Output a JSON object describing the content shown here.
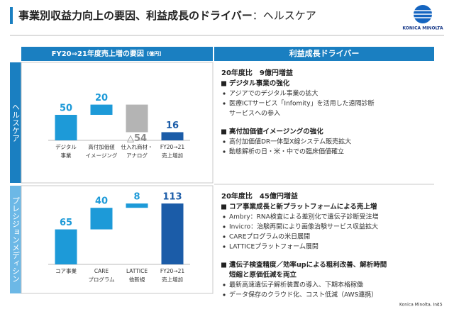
{
  "header": {
    "title": "事業別収益力向上の要因、利益成長のドライバー",
    "subtitle": "：ヘルスケア",
    "logo_text": "KONICA MINOLTA"
  },
  "table": {
    "left_header": "FY20⇒21年度売上増の要因",
    "left_header_unit": "[億円]",
    "right_header": "利益成長ドライバー",
    "rows": [
      {
        "label": "ヘルスケア",
        "heading": "20年度比　9億円増益",
        "sections": [
          {
            "title": [
              "デジタル事業の強化"
            ],
            "bullets": [
              [
                "アジアでのデジタル事業の拡大"
              ],
              [
                "医療ICTサービス「Infomity」を活用した遠隔診断",
                "サービスへの参入"
              ]
            ]
          },
          {
            "title": [
              "高付加価値イメージングの強化"
            ],
            "bullets": [
              [
                "高付加価値DR一体型X線システム販売拡大"
              ],
              [
                "動態解析の日・米・中での臨床価値確立"
              ]
            ]
          }
        ]
      },
      {
        "label": "プレシジョンメディシン",
        "heading": "20年度比　45億円増益",
        "sections": [
          {
            "title": [
              "コア事業成長と新プラットフォームによる売上増"
            ],
            "bullets": [
              [
                "Ambry：RNA検査による差別化で遺伝子診断受注増"
              ],
              [
                "Invicro：治験再開により画像治験サービス収益拡大"
              ],
              [
                "CAREプログラムの米日展開"
              ],
              [
                "LATTICEプラットフォーム展開"
              ]
            ]
          },
          {
            "title": [
              "遺伝子検査精度／効率upによる粗利改善、解析時間",
              "短縮と原価低減を両立"
            ],
            "bullets": [
              [
                "最新高速遺伝子解析装置の導入、下期本格稼働"
              ],
              [
                "データ保存のクラウド化、コスト低減（AWS連携）"
              ]
            ]
          }
        ]
      }
    ]
  },
  "chart_data": [
    {
      "type": "waterfall",
      "categories": [
        [
          "デジタル",
          "事業"
        ],
        [
          "高付加価値",
          "イメージング"
        ],
        [
          "仕入れ商材・",
          "アナログ"
        ],
        [
          "FY20→21",
          "売上増加"
        ]
      ],
      "values": [
        50,
        20,
        -54,
        16
      ],
      "value_labels": [
        "50",
        "20",
        "△54",
        "16"
      ],
      "colors": [
        "#1d9ad8",
        "#1d9ad8",
        "#b4b4b4",
        "#1b5ca8"
      ],
      "ylim": [
        0,
        100
      ]
    },
    {
      "type": "waterfall",
      "categories": [
        [
          "コア事業"
        ],
        [
          "CARE",
          "プログラム"
        ],
        [
          "LATTICE",
          "他新規"
        ],
        [
          "FY20→21",
          "売上増加"
        ]
      ],
      "values": [
        65,
        40,
        8,
        113
      ],
      "colors": [
        "#1d9ad8",
        "#1d9ad8",
        "#1d9ad8",
        "#1b5ca8"
      ],
      "ylim": [
        0,
        150
      ]
    }
  ],
  "footer": {
    "company": "Konica Minolta, Inc.",
    "page": "15"
  }
}
